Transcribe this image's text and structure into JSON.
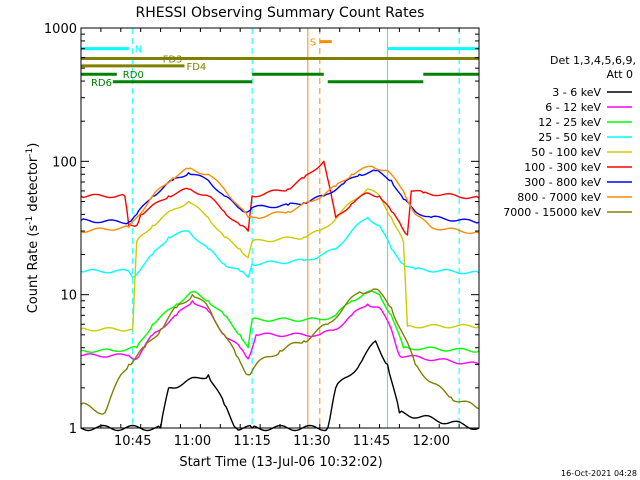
{
  "chart_data": {
    "type": "line",
    "title": "RHESSI Observing Summary Count Rates",
    "xlabel": "Start Time (13-Jul-06 10:32:02)",
    "ylabel": "Count Rate (s⁻¹ detector⁻¹)",
    "ylabel_main": "Count Rate (s",
    "ylabel_sup1": "-1",
    "ylabel_mid": " detector",
    "ylabel_sup2": "-1",
    "ylabel_end": ")",
    "y_scale": "log",
    "ylim": [
      1,
      1000
    ],
    "xlim": [
      "10:32",
      "12:12"
    ],
    "y_ticks": [
      {
        "value": 1,
        "label": "1"
      },
      {
        "value": 10,
        "label": "10"
      },
      {
        "value": 100,
        "label": "100"
      },
      {
        "value": 1000,
        "label": "1000"
      }
    ],
    "x_ticks": [
      {
        "time": "10:45",
        "label": "10:45"
      },
      {
        "time": "11:00",
        "label": "11:00"
      },
      {
        "time": "11:15",
        "label": "11:15"
      },
      {
        "time": "11:30",
        "label": "11:30"
      },
      {
        "time": "11:45",
        "label": "11:45"
      },
      {
        "time": "12:00",
        "label": "12:00"
      }
    ],
    "legend": {
      "placement": "right",
      "header": [
        "Det 1,3,4,5,6,9,",
        "Att 0"
      ],
      "entries": [
        {
          "label": "3 - 6 keV",
          "color": "#000000"
        },
        {
          "label": "6 - 12 keV",
          "color": "#ff00ff"
        },
        {
          "label": "12 - 25 keV",
          "color": "#00ff00"
        },
        {
          "label": "25 - 50 keV",
          "color": "#00ffff"
        },
        {
          "label": "50 - 100 keV",
          "color": "#cccc00"
        },
        {
          "label": "100 - 300 keV",
          "color": "#ff0000"
        },
        {
          "label": "300 - 800 keV",
          "color": "#0000ff"
        },
        {
          "label": "800 - 7000 keV",
          "color": "#ff8c00"
        },
        {
          "label": "7000 - 15000 keV",
          "color": "#808000"
        }
      ]
    },
    "series": [
      {
        "name": "3 - 6 keV",
        "color": "#000000",
        "points": [
          [
            "10:32",
            1
          ],
          [
            "10:52",
            1
          ],
          [
            "10:54",
            2
          ],
          [
            "11:04",
            2.5
          ],
          [
            "11:08",
            1.5
          ],
          [
            "11:11",
            1
          ],
          [
            "11:15",
            1
          ],
          [
            "11:34",
            1
          ],
          [
            "11:36",
            2
          ],
          [
            "11:42",
            3
          ],
          [
            "11:46",
            4.5
          ],
          [
            "11:49",
            3
          ],
          [
            "11:52",
            1.3
          ],
          [
            "12:12",
            1
          ]
        ]
      },
      {
        "name": "6 - 12 keV",
        "color": "#ff00ff",
        "points": [
          [
            "10:32",
            3.5
          ],
          [
            "10:44",
            3.5
          ],
          [
            "10:46",
            3.3
          ],
          [
            "10:50",
            5
          ],
          [
            "10:56",
            7
          ],
          [
            "11:00",
            9
          ],
          [
            "11:04",
            7.5
          ],
          [
            "11:08",
            5
          ],
          [
            "11:12",
            4
          ],
          [
            "11:14",
            3.3
          ],
          [
            "11:16",
            5
          ],
          [
            "11:32",
            5
          ],
          [
            "11:36",
            5.5
          ],
          [
            "11:40",
            7
          ],
          [
            "11:44",
            8.5
          ],
          [
            "11:47",
            8
          ],
          [
            "11:50",
            5.5
          ],
          [
            "11:52",
            3.5
          ],
          [
            "12:12",
            3
          ]
        ]
      },
      {
        "name": "12 - 25 keV",
        "color": "#00ff00",
        "points": [
          [
            "10:32",
            3.8
          ],
          [
            "10:40",
            3.8
          ],
          [
            "10:46",
            4
          ],
          [
            "10:50",
            6
          ],
          [
            "10:56",
            8.5
          ],
          [
            "11:00",
            10.5
          ],
          [
            "11:04",
            9
          ],
          [
            "11:08",
            7
          ],
          [
            "11:12",
            5
          ],
          [
            "11:14",
            4
          ],
          [
            "11:15",
            6.5
          ],
          [
            "11:32",
            6.5
          ],
          [
            "11:36",
            7
          ],
          [
            "11:40",
            9
          ],
          [
            "11:44",
            10.5
          ],
          [
            "11:47",
            10
          ],
          [
            "11:50",
            7
          ],
          [
            "11:53",
            4
          ],
          [
            "12:12",
            3.8
          ]
        ]
      },
      {
        "name": "25 - 50 keV",
        "color": "#00ffff",
        "points": [
          [
            "10:32",
            15
          ],
          [
            "10:44",
            15
          ],
          [
            "10:45",
            13.5
          ],
          [
            "10:50",
            20
          ],
          [
            "10:54",
            27
          ],
          [
            "10:59",
            30
          ],
          [
            "11:04",
            22
          ],
          [
            "11:08",
            17
          ],
          [
            "11:12",
            15
          ],
          [
            "11:14",
            13.5
          ],
          [
            "11:15",
            17
          ],
          [
            "11:28",
            18
          ],
          [
            "11:32",
            19.5
          ],
          [
            "11:36",
            22
          ],
          [
            "11:40",
            30
          ],
          [
            "11:44",
            38
          ],
          [
            "11:47",
            33
          ],
          [
            "11:50",
            22
          ],
          [
            "11:53",
            17
          ],
          [
            "11:56",
            15.5
          ],
          [
            "12:12",
            14.5
          ]
        ]
      },
      {
        "name": "50 - 100 keV",
        "color": "#cccc00",
        "points": [
          [
            "10:32",
            5.5
          ],
          [
            "10:45",
            5.5
          ],
          [
            "10:46",
            25
          ],
          [
            "10:50",
            33
          ],
          [
            "10:55",
            43
          ],
          [
            "10:59",
            50
          ],
          [
            "11:04",
            38
          ],
          [
            "11:08",
            27
          ],
          [
            "11:12",
            22
          ],
          [
            "11:14",
            19
          ],
          [
            "11:15",
            25
          ],
          [
            "11:28",
            27
          ],
          [
            "11:32",
            30
          ],
          [
            "11:36",
            37
          ],
          [
            "11:40",
            50
          ],
          [
            "11:44",
            62
          ],
          [
            "11:47",
            55
          ],
          [
            "11:50",
            38
          ],
          [
            "11:53",
            25
          ],
          [
            "11:54",
            5.8
          ],
          [
            "12:12",
            5.8
          ]
        ]
      },
      {
        "name": "100 - 300 keV",
        "color": "#ff0000",
        "points": [
          [
            "10:32",
            55
          ],
          [
            "10:43",
            55
          ],
          [
            "10:44",
            33
          ],
          [
            "10:46",
            33
          ],
          [
            "10:47",
            40
          ],
          [
            "10:54",
            55
          ],
          [
            "10:59",
            62
          ],
          [
            "11:04",
            55
          ],
          [
            "11:08",
            42
          ],
          [
            "11:12",
            33
          ],
          [
            "11:14",
            30
          ],
          [
            "11:15",
            55
          ],
          [
            "11:24",
            62
          ],
          [
            "11:28",
            75
          ],
          [
            "11:33",
            100
          ],
          [
            "11:36",
            38
          ],
          [
            "11:40",
            48
          ],
          [
            "11:44",
            58
          ],
          [
            "11:47",
            55
          ],
          [
            "11:50",
            42
          ],
          [
            "11:52",
            35
          ],
          [
            "11:54",
            28
          ],
          [
            "11:55",
            60
          ],
          [
            "11:58",
            58
          ],
          [
            "12:12",
            53
          ]
        ]
      },
      {
        "name": "300 - 800 keV",
        "color": "#0000ff",
        "points": [
          [
            "10:32",
            36
          ],
          [
            "10:44",
            35
          ],
          [
            "10:46",
            40
          ],
          [
            "10:50",
            55
          ],
          [
            "10:55",
            72
          ],
          [
            "10:59",
            82
          ],
          [
            "11:04",
            72
          ],
          [
            "11:08",
            55
          ],
          [
            "11:12",
            44
          ],
          [
            "11:14",
            42
          ],
          [
            "11:15",
            45
          ],
          [
            "11:24",
            47
          ],
          [
            "11:28",
            49
          ],
          [
            "11:33",
            55
          ],
          [
            "11:38",
            68
          ],
          [
            "11:42",
            80
          ],
          [
            "11:46",
            85
          ],
          [
            "11:50",
            72
          ],
          [
            "11:53",
            52
          ],
          [
            "11:56",
            42
          ],
          [
            "12:00",
            38
          ],
          [
            "12:12",
            35
          ]
        ]
      },
      {
        "name": "800 - 7000 keV",
        "color": "#ff8c00",
        "points": [
          [
            "10:32",
            30
          ],
          [
            "10:44",
            32
          ],
          [
            "10:46",
            38
          ],
          [
            "10:50",
            55
          ],
          [
            "10:55",
            75
          ],
          [
            "10:59",
            88
          ],
          [
            "11:04",
            80
          ],
          [
            "11:08",
            62
          ],
          [
            "11:12",
            45
          ],
          [
            "11:14",
            38
          ],
          [
            "11:16",
            38
          ],
          [
            "11:24",
            42
          ],
          [
            "11:30",
            50
          ],
          [
            "11:36",
            65
          ],
          [
            "11:40",
            80
          ],
          [
            "11:45",
            92
          ],
          [
            "11:49",
            85
          ],
          [
            "11:53",
            60
          ],
          [
            "11:56",
            40
          ],
          [
            "12:00",
            32
          ],
          [
            "12:12",
            29
          ]
        ]
      },
      {
        "name": "7000 - 15000 keV",
        "color": "#808000",
        "points": [
          [
            "10:32",
            1.5
          ],
          [
            "10:38",
            1.3
          ],
          [
            "10:42",
            2.5
          ],
          [
            "10:44",
            3
          ],
          [
            "10:48",
            4
          ],
          [
            "10:52",
            5.5
          ],
          [
            "10:56",
            8
          ],
          [
            "11:00",
            10
          ],
          [
            "11:04",
            8
          ],
          [
            "11:08",
            5
          ],
          [
            "11:11",
            3.5
          ],
          [
            "11:14",
            2.5
          ],
          [
            "11:16",
            3
          ],
          [
            "11:22",
            3.8
          ],
          [
            "11:28",
            4.5
          ],
          [
            "11:34",
            6
          ],
          [
            "11:38",
            8
          ],
          [
            "11:42",
            10.5
          ],
          [
            "11:46",
            11
          ],
          [
            "11:50",
            8
          ],
          [
            "11:53",
            5
          ],
          [
            "11:56",
            3
          ],
          [
            "12:00",
            2.2
          ],
          [
            "12:05",
            1.7
          ],
          [
            "12:12",
            1.4
          ]
        ]
      }
    ],
    "annotations": {
      "intervals": [
        {
          "label": "N",
          "color": "#00ffff",
          "segments": [
            [
              "10:32",
              "10:44"
            ],
            [
              "11:49",
              "12:12"
            ]
          ],
          "label_at": "10:45",
          "level": 700
        },
        {
          "label": "S",
          "color": "#ff8c00",
          "segments": [
            [
              "11:32",
              "11:35"
            ]
          ],
          "label_at": "11:29",
          "level": 790
        },
        {
          "label": "FD3",
          "color": "#808000",
          "segments": [
            [
              "10:32",
              "12:12"
            ]
          ],
          "label_at": "10:52",
          "level": 590
        },
        {
          "label": "FD4",
          "color": "#808000",
          "segments": [
            [
              "10:32",
              "10:58"
            ]
          ],
          "label_at": "10:58",
          "level": 520
        },
        {
          "label": "RD0",
          "color": "#008000",
          "segments": [
            [
              "10:32",
              "10:41"
            ],
            [
              "11:15",
              "11:33"
            ],
            [
              "11:58",
              "12:12"
            ]
          ],
          "label_at": "10:42",
          "level": 450
        },
        {
          "label": "RD6",
          "color": "#008000",
          "segments": [
            [
              "10:40",
              "11:15"
            ],
            [
              "11:34",
              "11:58"
            ]
          ],
          "label_at": "10:34",
          "level": 395
        }
      ],
      "vlines": [
        {
          "time": "10:32",
          "color": "#00ffff",
          "style": "solid"
        },
        {
          "time": "10:45",
          "color": "#00ffff",
          "style": "dashed"
        },
        {
          "time": "11:15",
          "color": "#00ffff",
          "style": "dashed"
        },
        {
          "time": "11:29",
          "color": "#ff8c00",
          "style": "solid"
        },
        {
          "time": "11:32",
          "color": "#ff8c00",
          "style": "dashed"
        },
        {
          "time": "11:49",
          "color": "#00ffff",
          "style": "solid"
        },
        {
          "time": "12:07",
          "color": "#00ffff",
          "style": "dashed"
        }
      ]
    }
  },
  "footer": {
    "timestamp": "16-Oct-2021 04:28"
  }
}
